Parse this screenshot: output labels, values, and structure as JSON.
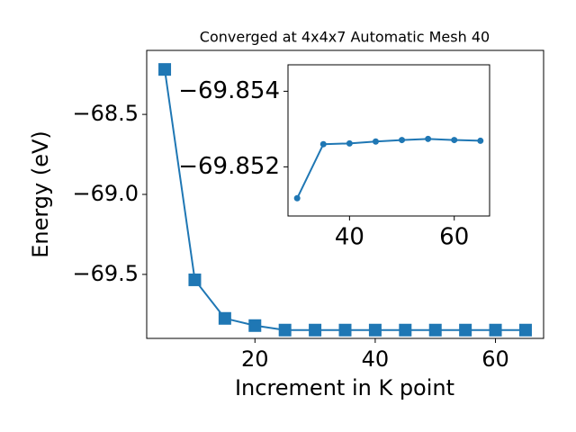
{
  "chart_data": [
    {
      "type": "line",
      "title": "Converged at 4x4x7 Automatic Mesh 40",
      "x_label": "Increment in K point",
      "y_label": "Energy (eV)",
      "x": [
        5,
        10,
        15,
        20,
        25,
        30,
        35,
        40,
        45,
        50,
        55,
        60,
        65
      ],
      "series": [
        {
          "color": "#1f77b4",
          "marker": "square",
          "values": [
            -68.219,
            -69.534,
            -69.775,
            -69.82,
            -69.848,
            -69.848,
            -69.848,
            -69.848,
            -69.848,
            -69.848,
            -69.848,
            -69.848,
            -69.848
          ]
        }
      ],
      "xlim": [
        2,
        68
      ],
      "ylim": [
        -69.9,
        -68.1
      ],
      "xticks": [
        20,
        40,
        60
      ],
      "yticks": [
        {
          "value": -69.5,
          "label": "−69.5"
        },
        {
          "value": -69.0,
          "label": "−69.0"
        },
        {
          "value": -68.5,
          "label": "−68.5"
        }
      ]
    },
    {
      "type": "line",
      "x": [
        30,
        35,
        40,
        45,
        50,
        55,
        60,
        65
      ],
      "series": [
        {
          "color": "#1f77b4",
          "marker": "circle",
          "values": [
            -69.85117,
            -69.8526,
            -69.85262,
            -69.85267,
            -69.85271,
            -69.85274,
            -69.85271,
            -69.85269
          ]
        }
      ],
      "xlim": [
        28.25,
        66.75
      ],
      "ylim": [
        -69.8507,
        -69.8547
      ],
      "xticks": [
        40,
        60
      ],
      "yticks": [
        {
          "value": -69.852,
          "label": "−69.852"
        },
        {
          "value": -69.854,
          "label": "−69.854"
        }
      ]
    }
  ]
}
